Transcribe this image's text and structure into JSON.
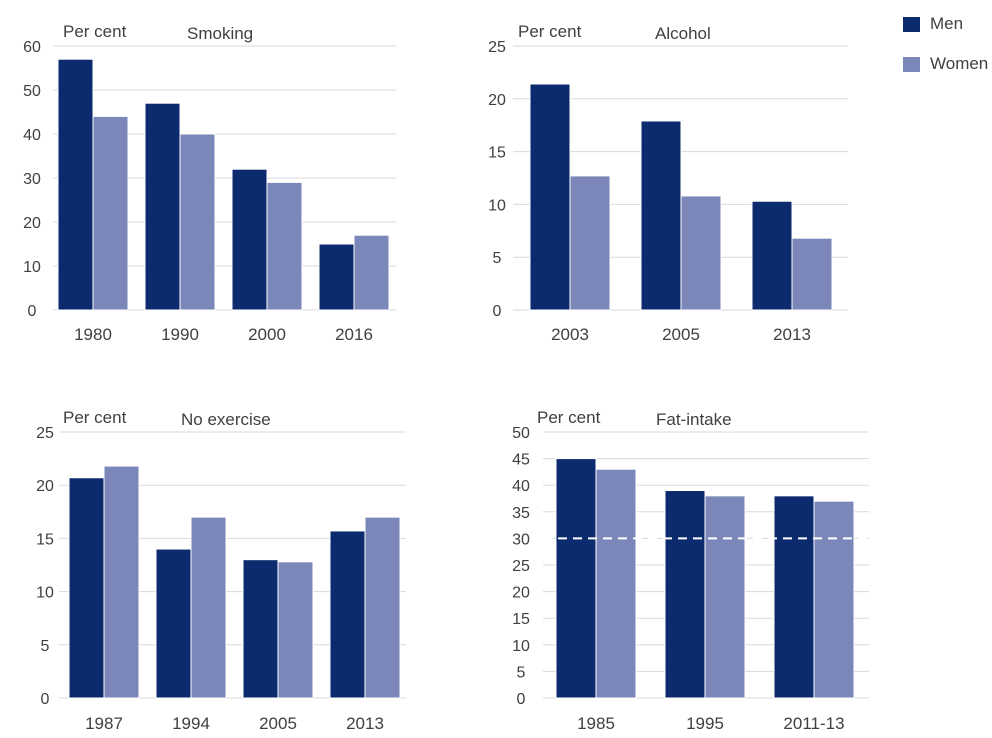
{
  "legend": [
    {
      "name": "Men",
      "color": "#0c2a6e"
    },
    {
      "name": "Women",
      "color": "#7b87b8"
    }
  ],
  "chart_data": [
    {
      "type": "bar",
      "title": "Smoking",
      "ylabel": "Per cent",
      "ylim": [
        0,
        60
      ],
      "yticks": [
        0,
        10,
        20,
        30,
        40,
        50,
        60
      ],
      "categories": [
        "1980",
        "1990",
        "2000",
        "2016"
      ],
      "series": [
        {
          "name": "Men",
          "values": [
            57,
            47,
            32,
            15
          ]
        },
        {
          "name": "Women",
          "values": [
            44,
            40,
            29,
            17
          ]
        }
      ]
    },
    {
      "type": "bar",
      "title": "Alcohol",
      "ylabel": "Per cent",
      "ylim": [
        0,
        25
      ],
      "yticks": [
        0,
        5,
        10,
        15,
        20,
        25
      ],
      "categories": [
        "2003",
        "2005",
        "2013"
      ],
      "series": [
        {
          "name": "Men",
          "values": [
            21.4,
            17.9,
            10.3
          ]
        },
        {
          "name": "Women",
          "values": [
            12.7,
            10.8,
            6.8
          ]
        }
      ]
    },
    {
      "type": "bar",
      "title": "No exercise",
      "ylabel": "Per cent",
      "ylim": [
        0,
        25
      ],
      "yticks": [
        0,
        5,
        10,
        15,
        20,
        25
      ],
      "categories": [
        "1987",
        "1994",
        "2005",
        "2013"
      ],
      "series": [
        {
          "name": "Men",
          "values": [
            20.7,
            14.0,
            13.0,
            15.7
          ]
        },
        {
          "name": "Women",
          "values": [
            21.8,
            17.0,
            12.8,
            17.0
          ]
        }
      ]
    },
    {
      "type": "bar",
      "title": "Fat-intake",
      "ylabel": "Per cent",
      "ylim": [
        0,
        50
      ],
      "yticks": [
        0,
        5,
        10,
        15,
        20,
        25,
        30,
        35,
        40,
        45,
        50
      ],
      "categories": [
        "1985",
        "1995",
        "2011-13"
      ],
      "series": [
        {
          "name": "Men",
          "values": [
            45,
            39,
            38
          ]
        },
        {
          "name": "Women",
          "values": [
            43,
            38,
            37
          ]
        }
      ],
      "reference_line": 30
    }
  ]
}
